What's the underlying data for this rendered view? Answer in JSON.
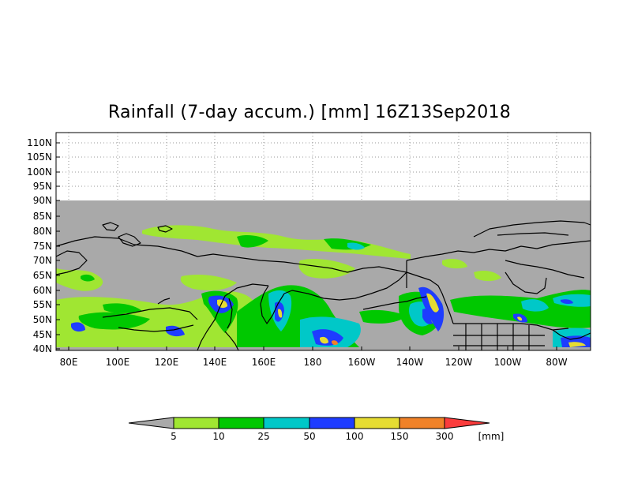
{
  "map": {
    "title": "Rainfall (7-day accum.) [mm] 16Z13Sep2018",
    "lat_labels": [
      "110N",
      "105N",
      "100N",
      "95N",
      "90N",
      "85N",
      "80N",
      "75N",
      "70N",
      "65N",
      "60N",
      "55N",
      "50N",
      "45N",
      "40N"
    ],
    "lon_labels": [
      "80E",
      "100E",
      "120E",
      "140E",
      "160E",
      "180",
      "160W",
      "140W",
      "120W",
      "100W",
      "80W"
    ],
    "no_data_color": "#a9a9a9",
    "coastline_color": "#000000"
  },
  "colorbar": {
    "unit": "[mm]",
    "labels": [
      "5",
      "10",
      "25",
      "50",
      "100",
      "150",
      "300"
    ],
    "colors": [
      "#a9a9a9",
      "#a0e632",
      "#00c800",
      "#00c8c8",
      "#1e3cff",
      "#e6dc32",
      "#f08228",
      "#fa3c3c"
    ]
  }
}
